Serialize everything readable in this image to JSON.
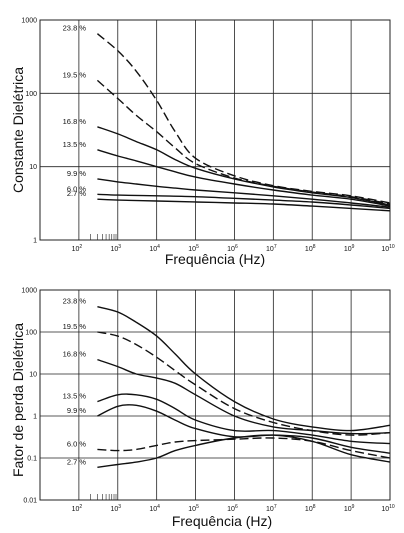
{
  "chart_data": [
    {
      "type": "line",
      "xscale": "log",
      "yscale": "log",
      "xlim": [
        10,
        10000000000
      ],
      "ylim": [
        1,
        1000
      ],
      "xlabel": "Frequência (Hz)",
      "ylabel": "Constante Dielétrica",
      "xticks": [
        {
          "value": 100,
          "base": "10",
          "exp": "2"
        },
        {
          "value": 1000,
          "base": "10",
          "exp": "3"
        },
        {
          "value": 10000,
          "base": "10",
          "exp": "4"
        },
        {
          "value": 100000,
          "base": "10",
          "exp": "5"
        },
        {
          "value": 1000000,
          "base": "10",
          "exp": "6"
        },
        {
          "value": 10000000,
          "base": "10",
          "exp": "7"
        },
        {
          "value": 100000000,
          "base": "10",
          "exp": "8"
        },
        {
          "value": 1000000000,
          "base": "10",
          "exp": "9"
        },
        {
          "value": 10000000000,
          "base": "10",
          "exp": "10"
        }
      ],
      "yticks": [
        {
          "value": 1,
          "label": "1"
        },
        {
          "value": 10,
          "label": "10"
        },
        {
          "value": 100,
          "label": "100"
        },
        {
          "value": 1000,
          "label": "1000"
        }
      ],
      "series": [
        {
          "name": "23.8%",
          "label": "23.8 %",
          "dashed": true,
          "x": [
            300,
            1000,
            3000,
            10000,
            30000,
            100000,
            1000000,
            10000000,
            100000000,
            1000000000,
            10000000000
          ],
          "y": [
            650,
            380,
            200,
            80,
            30,
            13,
            7.5,
            5.5,
            4.6,
            4.0,
            3.2
          ]
        },
        {
          "name": "19.5%",
          "label": "19.5 %",
          "dashed": true,
          "x": [
            300,
            1000,
            3000,
            10000,
            30000,
            100000,
            1000000,
            10000000,
            100000000,
            1000000000,
            10000000000
          ],
          "y": [
            150,
            85,
            50,
            30,
            18,
            11,
            7.0,
            5.4,
            4.5,
            3.9,
            3.1
          ]
        },
        {
          "name": "16.8%",
          "label": "16.8 %",
          "dashed": false,
          "x": [
            300,
            1000,
            3000,
            10000,
            30000,
            100000,
            1000000,
            10000000,
            100000000,
            1000000000,
            10000000000
          ],
          "y": [
            35,
            28,
            22,
            17,
            12.5,
            9.5,
            6.8,
            5.3,
            4.4,
            3.8,
            3.0
          ]
        },
        {
          "name": "13.5%",
          "label": "13.5 %",
          "dashed": false,
          "x": [
            300,
            1000,
            3000,
            10000,
            30000,
            100000,
            1000000,
            10000000,
            100000000,
            1000000000,
            10000000000
          ],
          "y": [
            17,
            14,
            12,
            10,
            8.5,
            7.2,
            5.8,
            4.8,
            4.1,
            3.6,
            2.9
          ]
        },
        {
          "name": "9.9%",
          "label": "9.9 %",
          "dashed": false,
          "x": [
            300,
            1000,
            3000,
            10000,
            30000,
            100000,
            1000000,
            10000000,
            100000000,
            1000000000,
            10000000000
          ],
          "y": [
            6.8,
            6.2,
            5.8,
            5.4,
            5.1,
            4.8,
            4.4,
            4.0,
            3.6,
            3.2,
            2.8
          ]
        },
        {
          "name": "6.0%",
          "label": "6.0 %",
          "dashed": false,
          "x": [
            300,
            1000,
            10000,
            100000,
            1000000,
            10000000,
            100000000,
            1000000000,
            10000000000
          ],
          "y": [
            4.2,
            4.1,
            4.0,
            3.9,
            3.7,
            3.5,
            3.3,
            3.0,
            2.7
          ]
        },
        {
          "name": "2.7%",
          "label": "2.7 %",
          "dashed": false,
          "x": [
            300,
            1000,
            10000,
            100000,
            1000000,
            10000000,
            100000000,
            1000000000,
            10000000000
          ],
          "y": [
            3.6,
            3.5,
            3.4,
            3.3,
            3.2,
            3.1,
            2.9,
            2.7,
            2.5
          ]
        }
      ]
    },
    {
      "type": "line",
      "xscale": "log",
      "yscale": "log",
      "xlim": [
        10,
        10000000000
      ],
      "ylim": [
        0.01,
        1000
      ],
      "xlabel": "Frequência (Hz)",
      "ylabel": "Fator de perda Dielétrica",
      "xticks": [
        {
          "value": 100,
          "base": "10",
          "exp": "2"
        },
        {
          "value": 1000,
          "base": "10",
          "exp": "3"
        },
        {
          "value": 10000,
          "base": "10",
          "exp": "4"
        },
        {
          "value": 100000,
          "base": "10",
          "exp": "5"
        },
        {
          "value": 1000000,
          "base": "10",
          "exp": "6"
        },
        {
          "value": 10000000,
          "base": "10",
          "exp": "7"
        },
        {
          "value": 100000000,
          "base": "10",
          "exp": "8"
        },
        {
          "value": 1000000000,
          "base": "10",
          "exp": "9"
        },
        {
          "value": 10000000000,
          "base": "10",
          "exp": "10"
        }
      ],
      "yticks": [
        {
          "value": 0.01,
          "label": "0.01"
        },
        {
          "value": 0.1,
          "label": "0.1"
        },
        {
          "value": 1,
          "label": "1"
        },
        {
          "value": 10,
          "label": "10"
        },
        {
          "value": 100,
          "label": "100"
        },
        {
          "value": 1000,
          "label": "1000"
        }
      ],
      "series": [
        {
          "name": "23.8%",
          "label": "23.8 %",
          "dashed": false,
          "x": [
            300,
            1000,
            3000,
            10000,
            30000,
            100000,
            1000000,
            10000000,
            100000000,
            1000000000,
            10000000000
          ],
          "y": [
            400,
            300,
            170,
            80,
            30,
            10,
            2.2,
            0.85,
            0.55,
            0.45,
            0.6
          ]
        },
        {
          "name": "19.5%",
          "label": "19.5 %",
          "dashed": true,
          "x": [
            300,
            1000,
            3000,
            10000,
            30000,
            100000,
            1000000,
            10000000,
            100000000,
            1000000000,
            10000000000
          ],
          "y": [
            100,
            80,
            50,
            25,
            12,
            5.5,
            1.5,
            0.7,
            0.45,
            0.35,
            0.4
          ]
        },
        {
          "name": "16.8%",
          "label": "16.8 %",
          "dashed": false,
          "x": [
            300,
            1000,
            3000,
            10000,
            30000,
            100000,
            1000000,
            10000000,
            100000000,
            1000000000,
            10000000000
          ],
          "y": [
            22,
            15,
            10,
            8,
            6,
            3.2,
            1.0,
            0.55,
            0.45,
            0.38,
            0.4
          ]
        },
        {
          "name": "13.5%",
          "label": "13.5 %",
          "dashed": false,
          "x": [
            300,
            1000,
            3000,
            10000,
            30000,
            100000,
            1000000,
            10000000,
            100000000,
            1000000000,
            10000000000
          ],
          "y": [
            2.2,
            3.2,
            3.2,
            2.5,
            1.5,
            0.8,
            0.45,
            0.45,
            0.35,
            0.25,
            0.22
          ]
        },
        {
          "name": "9.9%",
          "label": "9.9 %",
          "dashed": false,
          "x": [
            300,
            1000,
            3000,
            10000,
            30000,
            100000,
            1000000,
            10000000,
            100000000,
            1000000000,
            10000000000
          ],
          "y": [
            1.0,
            1.7,
            1.8,
            1.3,
            0.8,
            0.5,
            0.32,
            0.35,
            0.3,
            0.18,
            0.13
          ]
        },
        {
          "name": "6.0%",
          "label": "6.0 %",
          "dashed": true,
          "x": [
            300,
            1000,
            3000,
            10000,
            30000,
            100000,
            1000000,
            10000000,
            100000000,
            1000000000,
            10000000000
          ],
          "y": [
            0.16,
            0.15,
            0.16,
            0.2,
            0.24,
            0.26,
            0.28,
            0.3,
            0.25,
            0.15,
            0.1
          ]
        },
        {
          "name": "2.7%",
          "label": "2.7 %",
          "dashed": false,
          "x": [
            300,
            1000,
            3000,
            10000,
            30000,
            100000,
            1000000,
            10000000,
            100000000,
            1000000000,
            10000000000
          ],
          "y": [
            0.06,
            0.07,
            0.08,
            0.1,
            0.15,
            0.2,
            0.3,
            0.35,
            0.25,
            0.12,
            0.08
          ]
        }
      ]
    }
  ]
}
